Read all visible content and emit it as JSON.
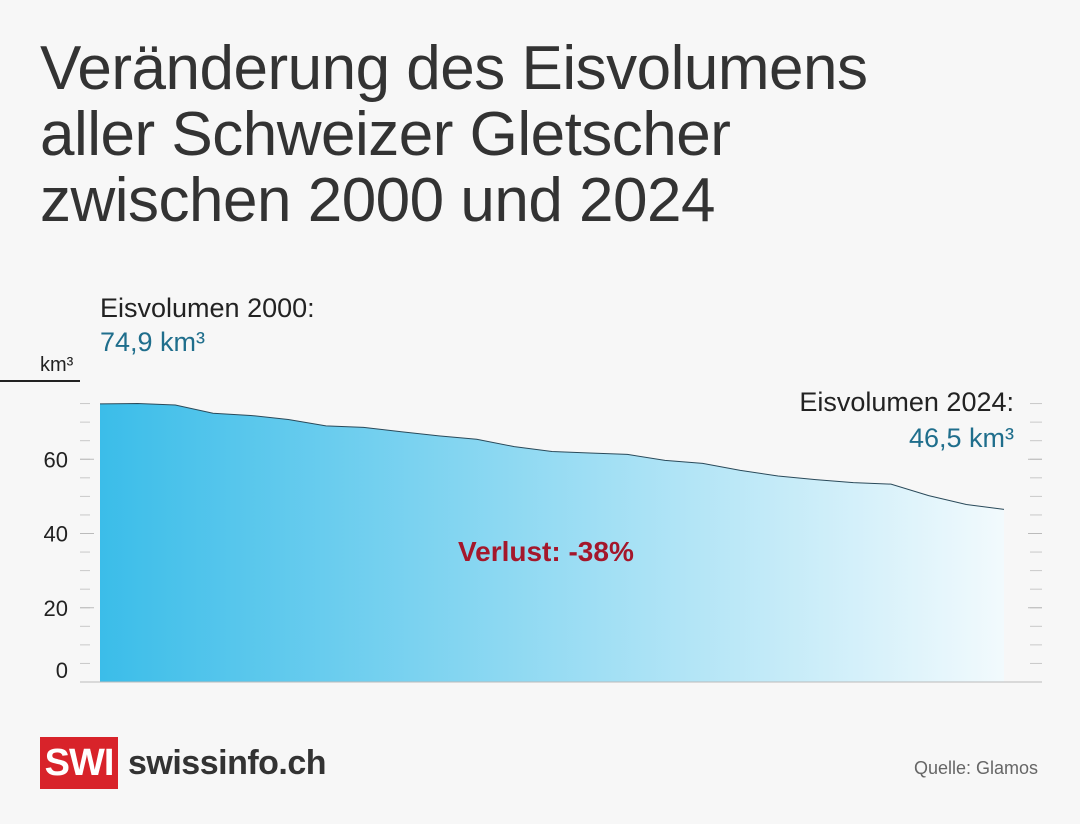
{
  "title_lines": [
    "Veränderung des Eisvolumens",
    "aller Schweizer Gletscher",
    "zwischen 2000 und 2024"
  ],
  "annotations": {
    "start_label": "Eisvolumen 2000:",
    "start_value": "74,9 km³",
    "end_label": "Eisvolumen 2024:",
    "end_value": "46,5 km³",
    "loss": "Verlust: -38%"
  },
  "unit": "km³",
  "source": "Quelle: Glamos",
  "brand": {
    "box": "SWI",
    "name": "swissinfo.ch"
  },
  "colors": {
    "area_start": "#3bbde9",
    "area_end": "#f2fafd",
    "loss": "#a4172b",
    "value": "#1f6e8c",
    "logo": "#d8232a"
  },
  "chart_data": {
    "type": "area",
    "x": [
      2000,
      2001,
      2002,
      2003,
      2004,
      2005,
      2006,
      2007,
      2008,
      2009,
      2010,
      2011,
      2012,
      2013,
      2014,
      2015,
      2016,
      2017,
      2018,
      2019,
      2020,
      2021,
      2022,
      2023,
      2024
    ],
    "y": [
      74.9,
      75.0,
      74.6,
      72.4,
      71.8,
      70.7,
      69.0,
      68.6,
      67.4,
      66.3,
      65.4,
      63.4,
      62.1,
      61.7,
      61.3,
      59.7,
      58.9,
      57.0,
      55.5,
      54.5,
      53.7,
      53.3,
      50.2,
      47.8,
      46.5
    ],
    "yticks": [
      0,
      20,
      40,
      60
    ],
    "ylim": [
      0,
      80
    ],
    "xlim": [
      2000,
      2024
    ],
    "xlabel": "",
    "ylabel": "km³",
    "grid": false,
    "legend": "none"
  }
}
